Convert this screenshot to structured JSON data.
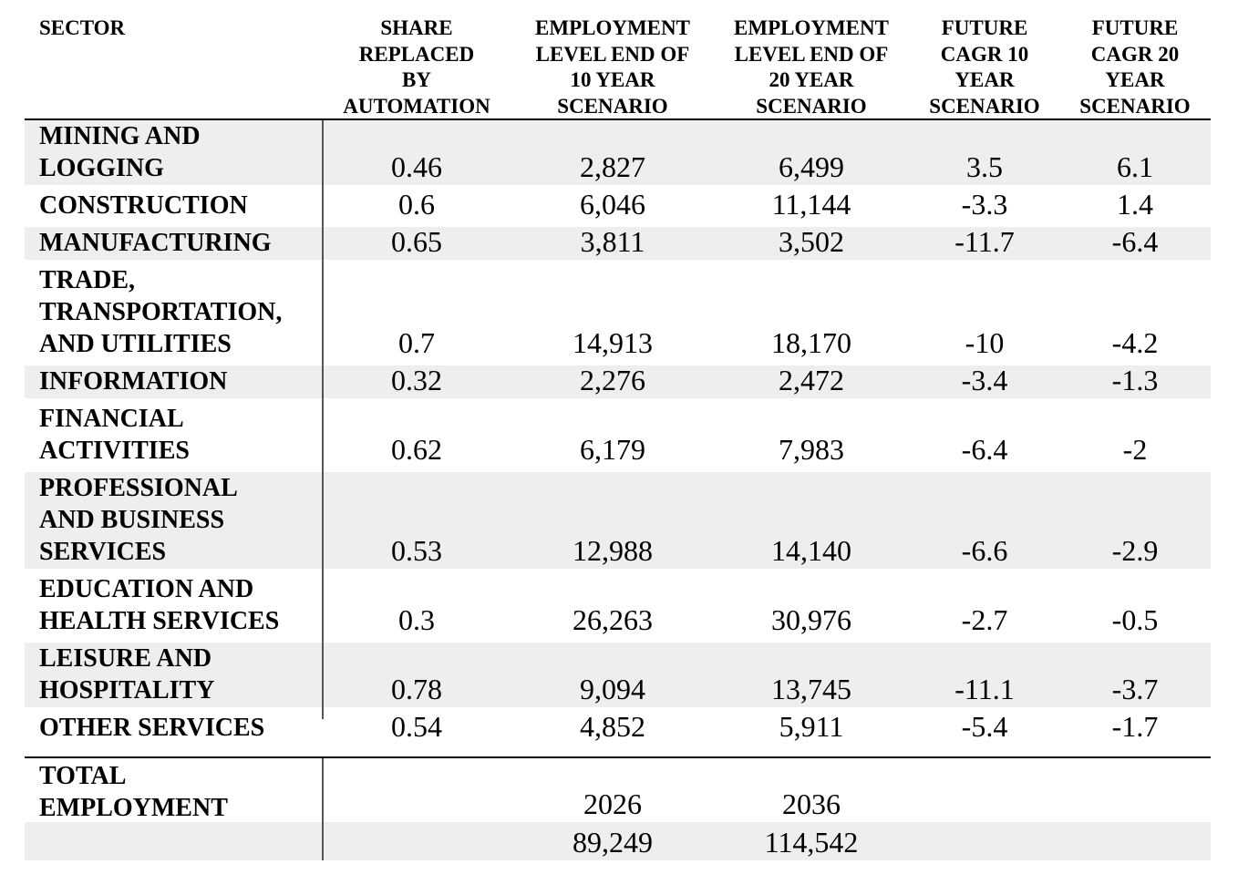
{
  "table": {
    "headers": [
      "SECTOR",
      "SHARE\nREPLACED\nBY\nAUTOMATION",
      "EMPLOYMENT\nLEVEL END OF\n10 YEAR\nSCENARIO",
      "EMPLOYMENT\nLEVEL END OF\n20 YEAR\nSCENARIO",
      "FUTURE\nCAGR 10\nYEAR\nSCENARIO",
      "FUTURE\nCAGR 20\nYEAR\nSCENARIO"
    ],
    "rows": [
      {
        "sector": "MINING AND\nLOGGING",
        "share": "0.46",
        "emp10": "2,827",
        "emp20": "6,499",
        "cagr10": "3.5",
        "cagr20": "6.1"
      },
      {
        "sector": "CONSTRUCTION",
        "share": "0.6",
        "emp10": "6,046",
        "emp20": "11,144",
        "cagr10": "-3.3",
        "cagr20": "1.4"
      },
      {
        "sector": "MANUFACTURING",
        "share": "0.65",
        "emp10": "3,811",
        "emp20": "3,502",
        "cagr10": "-11.7",
        "cagr20": "-6.4"
      },
      {
        "sector": "TRADE,\nTRANSPORTATION,\nAND UTILITIES",
        "share": "0.7",
        "emp10": "14,913",
        "emp20": "18,170",
        "cagr10": "-10",
        "cagr20": "-4.2"
      },
      {
        "sector": "INFORMATION",
        "share": "0.32",
        "emp10": "2,276",
        "emp20": "2,472",
        "cagr10": "-3.4",
        "cagr20": "-1.3"
      },
      {
        "sector": "FINANCIAL\nACTIVITIES",
        "share": "0.62",
        "emp10": "6,179",
        "emp20": "7,983",
        "cagr10": "-6.4",
        "cagr20": "-2"
      },
      {
        "sector": "PROFESSIONAL\nAND BUSINESS\nSERVICES",
        "share": "0.53",
        "emp10": "12,988",
        "emp20": "14,140",
        "cagr10": "-6.6",
        "cagr20": "-2.9"
      },
      {
        "sector": "EDUCATION AND\nHEALTH SERVICES",
        "share": "0.3",
        "emp10": "26,263",
        "emp20": "30,976",
        "cagr10": "-2.7",
        "cagr20": "-0.5"
      },
      {
        "sector": "LEISURE AND\nHOSPITALITY",
        "share": "0.78",
        "emp10": "9,094",
        "emp20": "13,745",
        "cagr10": "-11.1",
        "cagr20": "-3.7"
      },
      {
        "sector": "OTHER SERVICES",
        "share": "0.54",
        "emp10": "4,852",
        "emp20": "5,911",
        "cagr10": "-5.4",
        "cagr20": "-1.7"
      }
    ],
    "total": {
      "label": "TOTAL\nEMPLOYMENT",
      "year10": "2026",
      "year20": "2036",
      "value10": "89,249",
      "value20": "114,542"
    }
  }
}
